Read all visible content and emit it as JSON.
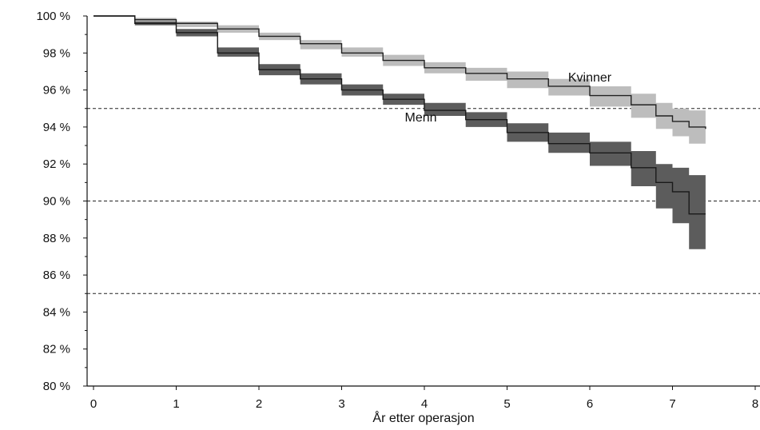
{
  "chart_data": {
    "type": "line",
    "title": "",
    "xlabel": "År etter operasjon",
    "ylabel": "",
    "xlim": [
      0,
      8
    ],
    "ylim": [
      80,
      100
    ],
    "x_ticks": [
      0,
      1,
      2,
      3,
      4,
      5,
      6,
      7,
      8
    ],
    "y_ticks": [
      {
        "value": 100,
        "label": "100 %"
      },
      {
        "value": 98,
        "label": "98 %"
      },
      {
        "value": 96,
        "label": "96 %"
      },
      {
        "value": 94,
        "label": "94 %"
      },
      {
        "value": 92,
        "label": "92 %"
      },
      {
        "value": 90,
        "label": "90 %"
      },
      {
        "value": 88,
        "label": "88 %"
      },
      {
        "value": 86,
        "label": "86 %"
      },
      {
        "value": 84,
        "label": "84 %"
      },
      {
        "value": 82,
        "label": "82 %"
      },
      {
        "value": 80,
        "label": "80 %"
      }
    ],
    "reference_lines": [
      95,
      90,
      85
    ],
    "grid": false,
    "legend": "none",
    "series": [
      {
        "name": "Kvinner",
        "line_color": "#222222",
        "band_color": "#bdbdbd",
        "x": [
          0,
          0.5,
          1,
          1.5,
          2,
          2.5,
          3,
          3.5,
          4,
          4.5,
          5,
          5.5,
          6,
          6.5,
          6.8,
          7,
          7.2,
          7.4
        ],
        "y": [
          100,
          99.8,
          99.6,
          99.3,
          98.9,
          98.5,
          98.0,
          97.6,
          97.2,
          96.9,
          96.6,
          96.2,
          95.7,
          95.2,
          94.6,
          94.3,
          94.0,
          93.9
        ],
        "lower": [
          100,
          99.7,
          99.4,
          99.1,
          98.7,
          98.2,
          97.8,
          97.3,
          96.9,
          96.5,
          96.1,
          95.7,
          95.1,
          94.5,
          93.9,
          93.5,
          93.1,
          93.0
        ],
        "upper": [
          100,
          99.9,
          99.7,
          99.5,
          99.1,
          98.7,
          98.3,
          97.9,
          97.5,
          97.2,
          97.0,
          96.6,
          96.2,
          95.8,
          95.3,
          95.0,
          94.9,
          94.9
        ]
      },
      {
        "name": "Menn",
        "line_color": "#1a1a1a",
        "band_color": "#5c5c5c",
        "x": [
          0,
          0.5,
          1,
          1.5,
          2,
          2.5,
          3,
          3.5,
          4,
          4.5,
          5,
          5.5,
          6,
          6.5,
          6.8,
          7,
          7.2,
          7.4
        ],
        "y": [
          100,
          99.6,
          99.1,
          98.0,
          97.1,
          96.6,
          96.0,
          95.5,
          94.9,
          94.4,
          93.7,
          93.1,
          92.6,
          91.8,
          91.0,
          90.5,
          89.3,
          89.3
        ],
        "lower": [
          100,
          99.5,
          98.9,
          97.8,
          96.8,
          96.3,
          95.7,
          95.2,
          94.6,
          94.0,
          93.2,
          92.6,
          91.9,
          90.8,
          89.6,
          88.8,
          87.4,
          87.4
        ],
        "upper": [
          100,
          99.7,
          99.3,
          98.3,
          97.4,
          96.9,
          96.3,
          95.8,
          95.3,
          94.8,
          94.2,
          93.7,
          93.2,
          92.7,
          92.0,
          91.8,
          91.4,
          91.4
        ]
      }
    ]
  }
}
